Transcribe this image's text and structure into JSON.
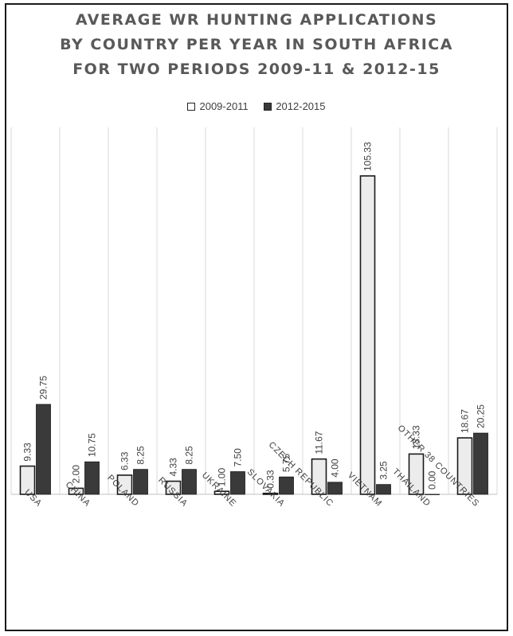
{
  "chart_data": {
    "type": "bar",
    "title_lines": [
      "AVERAGE  WR HUNTING APPLICATIONS",
      "BY COUNTRY PER YEAR IN SOUTH AFRICA",
      "FOR TWO PERIODS 2009-11 & 2012-15"
    ],
    "categories": [
      "USA",
      "CHINA",
      "POLAND",
      "RUSSIA",
      "UKRAINE",
      "SLOVAKIA",
      "CZECH REPUBLIC",
      "VIETNAM",
      "THAILAND",
      "OTHER 38 COUNTRIES"
    ],
    "series": [
      {
        "name": "2009-2011",
        "values": [
          9.33,
          2.0,
          6.33,
          4.33,
          1.0,
          0.33,
          11.67,
          105.33,
          13.33,
          18.67
        ],
        "labels": [
          "9.33",
          "2.00",
          "6.33",
          "4.33",
          "1.00",
          "0.33",
          "11.67",
          "105.33",
          "13.33",
          "18.67"
        ],
        "color": "#ececec"
      },
      {
        "name": "2012-2015",
        "values": [
          29.75,
          10.75,
          8.25,
          8.25,
          7.5,
          5.75,
          4.0,
          3.25,
          0.0,
          20.25
        ],
        "labels": [
          "29.75",
          "10.75",
          "8.25",
          "8.25",
          "7.50",
          "5.75",
          "4.00",
          "3.25",
          "0.00",
          "20.25"
        ],
        "color": "#3a3a3a"
      }
    ],
    "ylim": [
      0,
      108
    ],
    "grid": "vertical",
    "legend_position": "top",
    "xlabel": "",
    "ylabel": ""
  }
}
